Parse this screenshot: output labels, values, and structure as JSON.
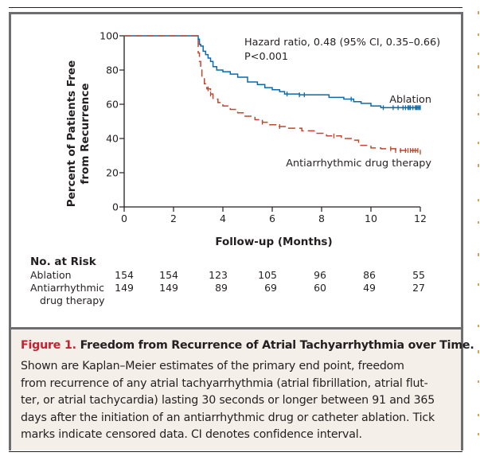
{
  "chart_data": {
    "type": "line",
    "subtype": "kaplan-meier",
    "title": "",
    "xlabel": "Follow-up (Months)",
    "ylabel": [
      "Percent of Patients Free",
      "from Recurrence"
    ],
    "xlim": [
      0,
      12
    ],
    "ylim": [
      0,
      100
    ],
    "xticks": [
      0,
      2,
      4,
      6,
      8,
      10,
      12
    ],
    "yticks": [
      0,
      20,
      40,
      60,
      80,
      100
    ],
    "grid": false,
    "annotation": {
      "line1": "Hazard ratio, 0.48 (95% CI, 0.35–0.66)",
      "line2": "P<0.001"
    },
    "series": [
      {
        "name": "Ablation",
        "label": "Ablation",
        "color": "#0a6aab",
        "style": "solid",
        "x": [
          0,
          2.95,
          3.0,
          3.05,
          3.1,
          3.2,
          3.3,
          3.4,
          3.5,
          3.6,
          3.75,
          4.0,
          4.3,
          4.6,
          5.0,
          5.4,
          5.7,
          6.0,
          6.3,
          6.5,
          7.1,
          7.5,
          8.3,
          8.9,
          9.3,
          9.6,
          10.0,
          10.4,
          12.0
        ],
        "y": [
          100,
          100,
          98,
          95,
          94,
          91,
          89,
          87,
          85,
          82,
          80,
          79,
          77.6,
          75.8,
          73,
          71.5,
          69.7,
          68.5,
          67.4,
          66,
          65.5,
          65.5,
          64,
          63,
          61.5,
          60.5,
          59,
          58,
          58
        ],
        "censor_x": [
          6.6,
          7.1,
          7.3,
          9.2,
          10.5,
          10.9,
          11.1,
          11.3,
          11.4,
          11.5,
          11.55,
          11.6,
          11.7,
          11.8,
          11.85,
          11.9,
          11.95,
          12.0
        ]
      },
      {
        "name": "Antiarrhythmic drug therapy",
        "label": "Antiarrhythmic drug therapy",
        "color": "#c0462e",
        "style": "dashed",
        "x": [
          0,
          2.95,
          3.0,
          3.05,
          3.1,
          3.15,
          3.25,
          3.35,
          3.5,
          3.6,
          3.8,
          4.0,
          4.3,
          4.6,
          4.9,
          5.3,
          5.6,
          5.9,
          6.2,
          6.6,
          7.2,
          7.7,
          8.2,
          8.8,
          9.2,
          9.5,
          10.0,
          10.4,
          11.0,
          12.0
        ],
        "y": [
          100,
          100,
          90,
          85,
          80,
          76,
          72,
          69,
          66,
          63,
          61,
          59,
          57,
          55,
          53,
          51,
          49.5,
          48,
          47,
          46,
          44.5,
          43,
          41.5,
          40,
          39,
          36,
          34.5,
          34,
          33,
          32
        ],
        "censor_x": [
          3.4,
          3.5,
          5.6,
          6.3,
          8.5,
          10.8,
          11.0,
          11.2,
          11.4,
          11.5,
          11.6,
          11.7,
          11.8,
          11.9,
          12.0
        ]
      }
    ],
    "risk_table": {
      "title": "No. at Risk",
      "rows": [
        {
          "label": [
            "Ablation"
          ],
          "values": [
            154,
            154,
            123,
            105,
            96,
            86,
            55
          ]
        },
        {
          "label": [
            "Antiarrhythmic",
            "drug therapy"
          ],
          "values": [
            149,
            149,
            89,
            69,
            60,
            49,
            27
          ]
        }
      ]
    }
  },
  "caption": {
    "figure_label": "Figure 1.",
    "title": "Freedom from Recurrence of Atrial Tachyarrhythmia over Time.",
    "lines": [
      "Shown are Kaplan–Meier estimates of the primary end point, freedom",
      "from recurrence of any atrial tachyarrhythmia (atrial fibrillation, atrial flut-",
      "ter, or atrial tachycardia) lasting 30 seconds or longer between 91 and 365",
      "days after the initiation of an antiarrhythmic drug or catheter ablation. Tick",
      "marks indicate censored data. CI denotes confidence interval."
    ]
  }
}
